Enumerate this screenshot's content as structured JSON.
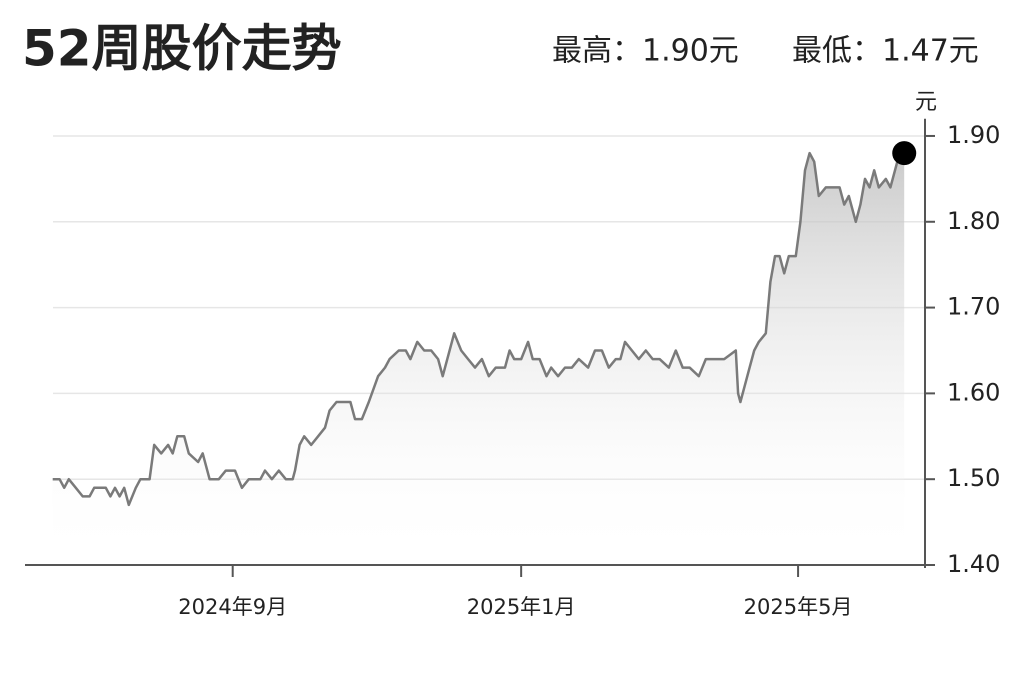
{
  "chart_data": {
    "type": "line",
    "title": "52周股价走势",
    "annotations": [
      "最高：1.90元",
      "最低：1.47元"
    ],
    "y_label": "元",
    "x": [
      12,
      15,
      17,
      19,
      22,
      25,
      28,
      30,
      35,
      37,
      39,
      41,
      43,
      45,
      48,
      50,
      54,
      56,
      59,
      62,
      64,
      66,
      69,
      71,
      75,
      77,
      80,
      84,
      87,
      91,
      94,
      97,
      102,
      104,
      107,
      110,
      113,
      116,
      117,
      119,
      121,
      124,
      127,
      130,
      132,
      135,
      141,
      143,
      146,
      149,
      153,
      156,
      158,
      162,
      165,
      167,
      170,
      173,
      176,
      179,
      181,
      183,
      186,
      189,
      192,
      195,
      198,
      201,
      204,
      208,
      210,
      212,
      215,
      218,
      220,
      223,
      226,
      228,
      231,
      234,
      237,
      240,
      244,
      247,
      250,
      253,
      256,
      258,
      260,
      263,
      266,
      269,
      272,
      275,
      279,
      282,
      285,
      288,
      292,
      295,
      299,
      303,
      308,
      309,
      310,
      312,
      314,
      316,
      318,
      321,
      323,
      325,
      327,
      329,
      331,
      334,
      336,
      338,
      340,
      342,
      344,
      347,
      350,
      353,
      355,
      357,
      360,
      362,
      364,
      366,
      368,
      370,
      373,
      375,
      377,
      379,
      381
    ],
    "series": [
      {
        "color": "#7a7a7a",
        "values": [
          1.5,
          1.5,
          1.49,
          1.5,
          1.49,
          1.48,
          1.48,
          1.49,
          1.49,
          1.48,
          1.49,
          1.48,
          1.49,
          1.47,
          1.49,
          1.5,
          1.5,
          1.54,
          1.53,
          1.54,
          1.53,
          1.55,
          1.55,
          1.53,
          1.52,
          1.53,
          1.5,
          1.5,
          1.51,
          1.51,
          1.49,
          1.5,
          1.5,
          1.51,
          1.5,
          1.51,
          1.5,
          1.5,
          1.51,
          1.54,
          1.55,
          1.54,
          1.55,
          1.56,
          1.58,
          1.59,
          1.59,
          1.57,
          1.57,
          1.59,
          1.62,
          1.63,
          1.64,
          1.65,
          1.65,
          1.64,
          1.66,
          1.65,
          1.65,
          1.64,
          1.62,
          1.64,
          1.67,
          1.65,
          1.64,
          1.63,
          1.64,
          1.62,
          1.63,
          1.63,
          1.65,
          1.64,
          1.64,
          1.66,
          1.64,
          1.64,
          1.62,
          1.63,
          1.62,
          1.63,
          1.63,
          1.64,
          1.63,
          1.65,
          1.65,
          1.63,
          1.64,
          1.64,
          1.66,
          1.65,
          1.64,
          1.65,
          1.64,
          1.64,
          1.63,
          1.65,
          1.63,
          1.63,
          1.62,
          1.64,
          1.64,
          1.64,
          1.65,
          1.6,
          1.59,
          1.61,
          1.63,
          1.65,
          1.66,
          1.67,
          1.73,
          1.76,
          1.76,
          1.74,
          1.76,
          1.76,
          1.8,
          1.86,
          1.88,
          1.87,
          1.83,
          1.84,
          1.84,
          1.84,
          1.82,
          1.83,
          1.8,
          1.82,
          1.85,
          1.84,
          1.86,
          1.84,
          1.85,
          1.84,
          1.86,
          1.88,
          1.88
        ]
      }
    ],
    "xlim": [
      0,
      390
    ],
    "xticks": [
      {
        "value": 90,
        "label": "2024年9月"
      },
      {
        "value": 215,
        "label": "2025年1月"
      },
      {
        "value": 335,
        "label": "2025年5月"
      }
    ],
    "ylim": [
      1.4,
      1.92
    ],
    "yticks": [
      {
        "value": 1.4,
        "label": "1.40"
      },
      {
        "value": 1.5,
        "label": "1.50"
      },
      {
        "value": 1.6,
        "label": "1.60"
      },
      {
        "value": 1.7,
        "label": "1.70"
      },
      {
        "value": 1.8,
        "label": "1.80"
      },
      {
        "value": 1.9,
        "label": "1.90"
      }
    ],
    "grid": true
  }
}
